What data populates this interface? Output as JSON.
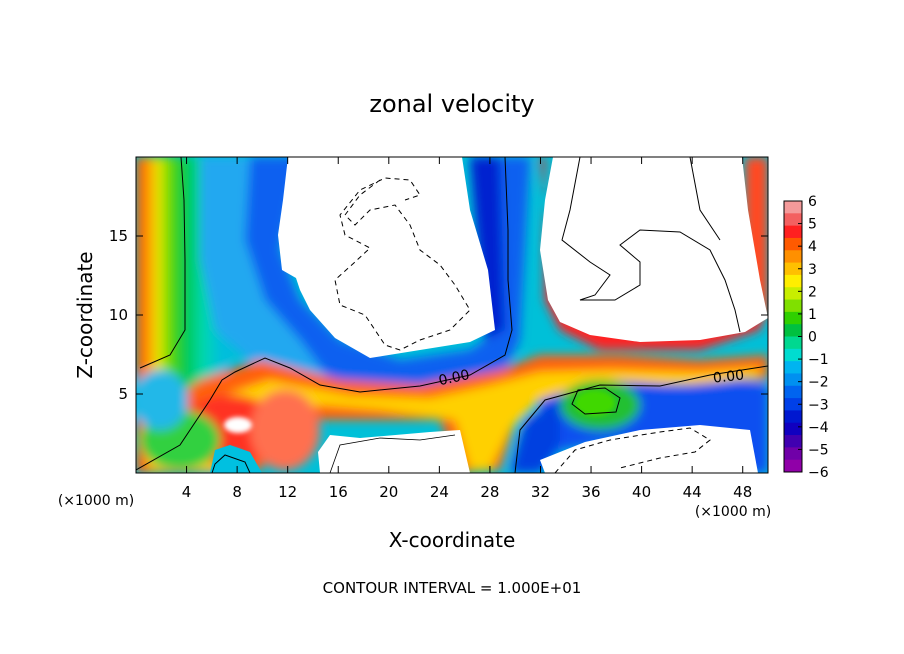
{
  "chart_data": {
    "type": "heatmap",
    "title": "zonal velocity",
    "xlabel": "X-coordinate",
    "ylabel": "Z-coordinate",
    "x_unit": "(×1000 m)",
    "z_unit": "(×1000 m)",
    "xlim": [
      0,
      50
    ],
    "ylim": [
      0,
      20
    ],
    "x_ticks": [
      4,
      8,
      12,
      16,
      20,
      24,
      28,
      32,
      36,
      40,
      44,
      48
    ],
    "y_ticks": [
      5,
      10,
      15
    ],
    "footer": "CONTOUR INTERVAL = 1.000E+01",
    "contour_labels": [
      {
        "text": "0.00",
        "x": 25.0,
        "z": 6.0
      },
      {
        "text": "0.00",
        "x": 47.0,
        "z": 6.0
      }
    ],
    "colorbar": {
      "min": -6,
      "max": 6,
      "ticks": [
        6,
        5,
        4,
        3,
        2,
        1,
        0,
        -1,
        -2,
        -3,
        -4,
        -5,
        -6
      ],
      "colors": [
        "#f49a9a",
        "#f36060",
        "#ff2020",
        "#ff5a00",
        "#ff9000",
        "#ffc000",
        "#ffee00",
        "#c8ee00",
        "#80e000",
        "#30d000",
        "#00c040",
        "#00d890",
        "#00dcd0",
        "#00b4f0",
        "#0090f0",
        "#0064f0",
        "#0040e8",
        "#0018d0",
        "#1000c0",
        "#4000b0",
        "#7000a8",
        "#9000a8"
      ]
    },
    "legend_position": "right"
  }
}
